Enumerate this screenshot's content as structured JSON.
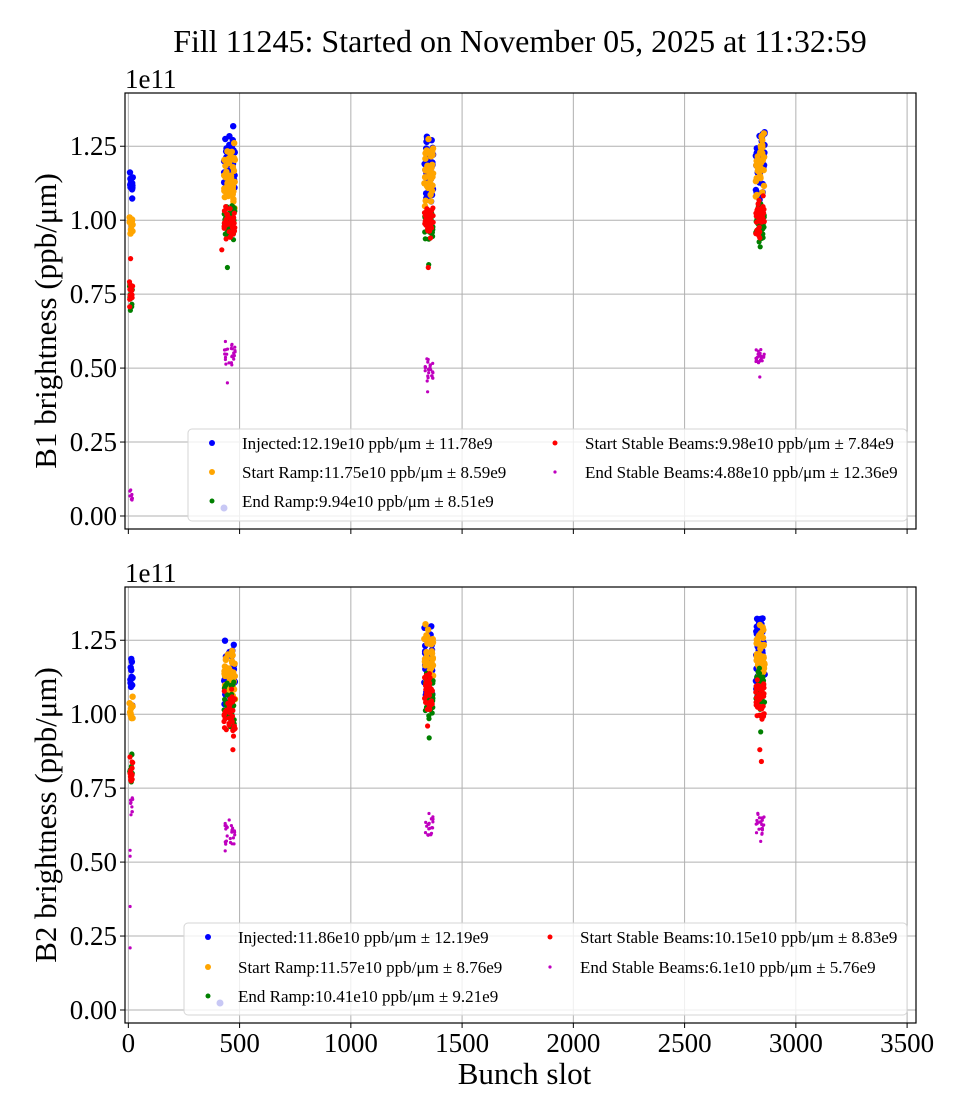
{
  "chart_data": [
    {
      "type": "scatter",
      "title": "Fill 11245: Started on November 05, 2025 at 11:32:59",
      "panel": "top",
      "xlabel": "",
      "ylabel": "B1 brightness (ppb/μm)",
      "y_offset_label": "1e11",
      "xlim": [
        -15,
        3540
      ],
      "ylim": [
        -0.044,
        1.43
      ],
      "x_ticks": [
        0,
        500,
        1000,
        1500,
        2000,
        2500,
        3000,
        3500
      ],
      "x_tick_labels_visible": false,
      "y_ticks": [
        0.0,
        0.25,
        0.5,
        0.75,
        1.0,
        1.25
      ],
      "y_tick_labels": [
        "0.00",
        "0.25",
        "0.50",
        "0.75",
        "1.00",
        "1.25"
      ],
      "grid": true,
      "legend_position": "lower-right",
      "legend_columns": 2,
      "series": [
        {
          "name": "Injected",
          "label": "Injected:12.19e10 ppb/μm ± 11.78e9",
          "color": "#0000ff",
          "size": "large",
          "clusters": [
            {
              "x": [
                5,
                20
              ],
              "y": [
                1.05,
                1.19
              ],
              "n": 12
            },
            {
              "x": [
                430,
                480
              ],
              "y": [
                1.04,
                1.35
              ],
              "n": 40
            },
            {
              "x": [
                1330,
                1370
              ],
              "y": [
                1.04,
                1.33
              ],
              "n": 40
            },
            {
              "x": [
                2820,
                2860
              ],
              "y": [
                1.05,
                1.36
              ],
              "n": 40
            }
          ]
        },
        {
          "name": "Start Ramp",
          "label": "Start Ramp:11.75e10 ppb/μm ± 8.59e9",
          "color": "#ffa500",
          "size": "large",
          "clusters": [
            {
              "x": [
                5,
                20
              ],
              "y": [
                0.93,
                1.04
              ],
              "n": 12
            },
            {
              "x": [
                430,
                480
              ],
              "y": [
                1.02,
                1.27
              ],
              "n": 40
            },
            {
              "x": [
                1330,
                1370
              ],
              "y": [
                1.02,
                1.28
              ],
              "n": 40
            },
            {
              "x": [
                2820,
                2860
              ],
              "y": [
                1.07,
                1.33
              ],
              "n": 40
            }
          ]
        },
        {
          "name": "End Ramp",
          "label": "End Ramp:9.94e10 ppb/μm ± 8.51e9",
          "color": "#008000",
          "size": "medium",
          "clusters": [
            {
              "x": [
                5,
                20
              ],
              "y": [
                0.69,
                0.8
              ],
              "n": 12
            },
            {
              "x": [
                430,
                480
              ],
              "y": [
                0.93,
                1.06
              ],
              "n": 35
            },
            {
              "x": [
                1330,
                1370
              ],
              "y": [
                0.92,
                1.06
              ],
              "n": 35
            },
            {
              "x": [
                2820,
                2860
              ],
              "y": [
                0.91,
                1.07
              ],
              "n": 35
            }
          ],
          "outliers": [
            {
              "x": 445,
              "y": 0.84
            },
            {
              "x": 1350,
              "y": 0.85
            },
            {
              "x": 2840,
              "y": 0.91
            }
          ]
        },
        {
          "name": "Start Stable Beams",
          "label": "Start Stable Beams:9.98e10 ppb/μm ± 7.84e9",
          "color": "#ff0000",
          "size": "medium",
          "clusters": [
            {
              "x": [
                5,
                20
              ],
              "y": [
                0.7,
                0.82
              ],
              "n": 14
            },
            {
              "x": [
                430,
                480
              ],
              "y": [
                0.93,
                1.06
              ],
              "n": 40
            },
            {
              "x": [
                1330,
                1370
              ],
              "y": [
                0.93,
                1.06
              ],
              "n": 40
            },
            {
              "x": [
                2820,
                2860
              ],
              "y": [
                0.94,
                1.09
              ],
              "n": 40
            }
          ],
          "outliers": [
            {
              "x": 10,
              "y": 0.87
            },
            {
              "x": 420,
              "y": 0.9
            },
            {
              "x": 1348,
              "y": 0.84
            },
            {
              "x": 2838,
              "y": 0.94
            }
          ]
        },
        {
          "name": "End Stable Beams",
          "label": "End Stable Beams:4.88e10 ppb/μm ± 12.36e9",
          "color": "#bf00bf",
          "size": "small",
          "clusters": [
            {
              "x": [
                5,
                20
              ],
              "y": [
                0.04,
                0.11
              ],
              "n": 8
            },
            {
              "x": [
                430,
                480
              ],
              "y": [
                0.5,
                0.6
              ],
              "n": 25
            },
            {
              "x": [
                1330,
                1370
              ],
              "y": [
                0.45,
                0.54
              ],
              "n": 25
            },
            {
              "x": [
                2820,
                2860
              ],
              "y": [
                0.51,
                0.57
              ],
              "n": 22
            }
          ],
          "outliers": [
            {
              "x": 445,
              "y": 0.45
            },
            {
              "x": 1345,
              "y": 0.42
            },
            {
              "x": 2838,
              "y": 0.47
            }
          ]
        }
      ]
    },
    {
      "type": "scatter",
      "panel": "bottom",
      "xlabel": "Bunch slot",
      "ylabel": "B2 brightness (ppb/μm)",
      "y_offset_label": "1e11",
      "xlim": [
        -15,
        3540
      ],
      "ylim": [
        -0.044,
        1.43
      ],
      "x_ticks": [
        0,
        500,
        1000,
        1500,
        2000,
        2500,
        3000,
        3500
      ],
      "x_tick_labels": [
        "0",
        "500",
        "1000",
        "1500",
        "2000",
        "2500",
        "3000",
        "3500"
      ],
      "y_ticks": [
        0.0,
        0.25,
        0.5,
        0.75,
        1.0,
        1.25
      ],
      "y_tick_labels": [
        "0.00",
        "0.25",
        "0.50",
        "0.75",
        "1.00",
        "1.25"
      ],
      "grid": true,
      "legend_position": "lower-right",
      "legend_columns": 2,
      "series": [
        {
          "name": "Injected",
          "label": "Injected:11.86e10 ppb/μm ± 12.19e9",
          "color": "#0000ff",
          "size": "large",
          "clusters": [
            {
              "x": [
                5,
                20
              ],
              "y": [
                1.02,
                1.2
              ],
              "n": 12
            },
            {
              "x": [
                430,
                480
              ],
              "y": [
                1.0,
                1.27
              ],
              "n": 40
            },
            {
              "x": [
                1330,
                1370
              ],
              "y": [
                1.02,
                1.33
              ],
              "n": 40
            },
            {
              "x": [
                2820,
                2860
              ],
              "y": [
                1.05,
                1.36
              ],
              "n": 40
            }
          ]
        },
        {
          "name": "Start Ramp",
          "label": "Start Ramp:11.57e10 ppb/μm ± 8.76e9",
          "color": "#ffa500",
          "size": "large",
          "clusters": [
            {
              "x": [
                5,
                20
              ],
              "y": [
                0.93,
                1.07
              ],
              "n": 12
            },
            {
              "x": [
                430,
                480
              ],
              "y": [
                1.02,
                1.25
              ],
              "n": 40
            },
            {
              "x": [
                1330,
                1370
              ],
              "y": [
                1.05,
                1.31
              ],
              "n": 40
            },
            {
              "x": [
                2820,
                2860
              ],
              "y": [
                1.07,
                1.32
              ],
              "n": 40
            }
          ]
        },
        {
          "name": "End Ramp",
          "label": "End Ramp:10.41e10 ppb/μm ± 9.21e9",
          "color": "#008000",
          "size": "medium",
          "clusters": [
            {
              "x": [
                5,
                20
              ],
              "y": [
                0.76,
                0.87
              ],
              "n": 10
            },
            {
              "x": [
                430,
                480
              ],
              "y": [
                0.93,
                1.12
              ],
              "n": 35
            },
            {
              "x": [
                1330,
                1370
              ],
              "y": [
                0.96,
                1.15
              ],
              "n": 35
            },
            {
              "x": [
                2820,
                2860
              ],
              "y": [
                0.98,
                1.19
              ],
              "n": 35
            }
          ],
          "outliers": [
            {
              "x": 1352,
              "y": 0.92
            },
            {
              "x": 2842,
              "y": 0.94
            }
          ]
        },
        {
          "name": "Start Stable Beams",
          "label": "Start Stable Beams:10.15e10 ppb/μm ± 8.83e9",
          "color": "#ff0000",
          "size": "medium",
          "clusters": [
            {
              "x": [
                5,
                20
              ],
              "y": [
                0.76,
                0.87
              ],
              "n": 14
            },
            {
              "x": [
                430,
                480
              ],
              "y": [
                0.91,
                1.1
              ],
              "n": 40
            },
            {
              "x": [
                1330,
                1370
              ],
              "y": [
                1.0,
                1.15
              ],
              "n": 40
            },
            {
              "x": [
                2820,
                2860
              ],
              "y": [
                0.96,
                1.13
              ],
              "n": 40
            }
          ],
          "outliers": [
            {
              "x": 470,
              "y": 0.88
            },
            {
              "x": 1345,
              "y": 0.96
            },
            {
              "x": 2838,
              "y": 0.88
            },
            {
              "x": 2845,
              "y": 0.84
            }
          ]
        },
        {
          "name": "End Stable Beams",
          "label": "End Stable Beams:6.1e10 ppb/μm ± 5.76e9",
          "color": "#bf00bf",
          "size": "small",
          "clusters": [
            {
              "x": [
                5,
                20
              ],
              "y": [
                0.65,
                0.75
              ],
              "n": 8
            },
            {
              "x": [
                430,
                480
              ],
              "y": [
                0.53,
                0.65
              ],
              "n": 25
            },
            {
              "x": [
                1330,
                1370
              ],
              "y": [
                0.58,
                0.67
              ],
              "n": 22
            },
            {
              "x": [
                2820,
                2860
              ],
              "y": [
                0.59,
                0.67
              ],
              "n": 22
            }
          ],
          "outliers": [
            {
              "x": 8,
              "y": 0.54
            },
            {
              "x": 8,
              "y": 0.52
            },
            {
              "x": 8,
              "y": 0.35
            },
            {
              "x": 8,
              "y": 0.21
            },
            {
              "x": 12,
              "y": 0.66
            },
            {
              "x": 2842,
              "y": 0.57
            }
          ]
        }
      ]
    }
  ]
}
